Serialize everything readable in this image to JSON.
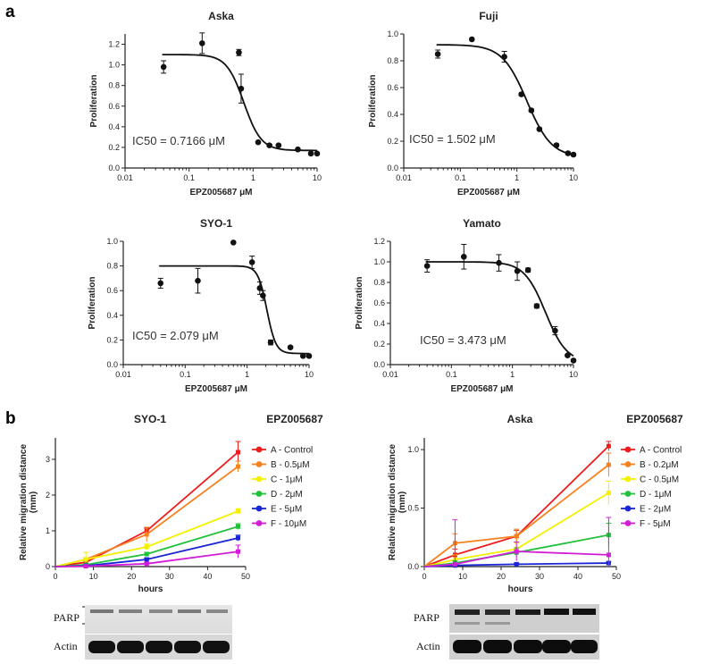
{
  "panel_labels": [
    "a",
    "b"
  ],
  "ic50_plots": {
    "xlabel": "EPZ005687 μM",
    "ylabel": "Proliferation",
    "xticks": [
      "0.01",
      "0.1",
      "1",
      "10"
    ]
  },
  "migration_plots": {
    "xlabel": "hours",
    "ylabel_line1": "Relative migration distance",
    "ylabel_line2": "(mm)",
    "legend_title": "EPZ005687"
  },
  "blots": {
    "left": {
      "parp_label": "PARP",
      "actin_label": "Actin"
    },
    "right": {
      "parp_label": "PARP",
      "actin_label": "Actin"
    }
  },
  "chart_data": [
    {
      "type": "scatter",
      "title": "Aska",
      "xscale": "log",
      "xlabel": "EPZ005687 μM",
      "ylabel": "Proliferation",
      "xlim": [
        0.01,
        10
      ],
      "ylim": [
        0,
        1.3
      ],
      "yticks": [
        "0.0",
        "0.2",
        "0.4",
        "0.6",
        "0.8",
        "1.0",
        "1.2"
      ],
      "x": [
        0.04,
        0.16,
        0.6,
        0.65,
        1.2,
        1.8,
        2.5,
        5,
        8,
        10
      ],
      "y": [
        0.98,
        1.21,
        1.12,
        0.77,
        0.25,
        0.22,
        0.22,
        0.18,
        0.14,
        0.14
      ],
      "err": [
        0.06,
        0.1,
        0.03,
        0.14,
        0.01,
        0.01,
        0.01,
        0.01,
        0.01,
        0.01
      ],
      "fit": {
        "top": 1.1,
        "bottom": 0.17,
        "ic50": 0.7166,
        "hill": 3.2
      },
      "annotation": "IC50 = 0.7166 μM"
    },
    {
      "type": "scatter",
      "title": "Fuji",
      "xscale": "log",
      "xlabel": "EPZ005687 μM",
      "ylabel": "Proliferation",
      "xlim": [
        0.01,
        10
      ],
      "ylim": [
        0,
        1.0
      ],
      "yticks": [
        "0.0",
        "0.2",
        "0.4",
        "0.6",
        "0.8",
        "1.0"
      ],
      "x": [
        0.04,
        0.16,
        0.6,
        1.2,
        1.8,
        2.5,
        5,
        8,
        10
      ],
      "y": [
        0.85,
        0.96,
        0.83,
        0.55,
        0.43,
        0.29,
        0.17,
        0.11,
        0.1
      ],
      "err": [
        0.03,
        0.0,
        0.04,
        0.01,
        0.01,
        0.01,
        0.01,
        0.01,
        0.01
      ],
      "fit": {
        "top": 0.92,
        "bottom": 0.08,
        "ic50": 1.502,
        "hill": 2.0
      },
      "annotation": "IC50 = 1.502 μM"
    },
    {
      "type": "scatter",
      "title": "SYO-1",
      "xscale": "log",
      "xlabel": "EPZ005687 μM",
      "ylabel": "Proliferation",
      "xlim": [
        0.01,
        10
      ],
      "ylim": [
        0,
        1.0
      ],
      "yticks": [
        "0.0",
        "0.2",
        "0.4",
        "0.6",
        "0.8",
        "1.0"
      ],
      "x": [
        0.04,
        0.16,
        0.6,
        1.2,
        1.6,
        1.8,
        2.4,
        5,
        8,
        10
      ],
      "y": [
        0.66,
        0.68,
        0.99,
        0.83,
        0.62,
        0.56,
        0.18,
        0.14,
        0.07,
        0.07
      ],
      "err": [
        0.04,
        0.1,
        0.0,
        0.05,
        0.05,
        0.04,
        0.02,
        0.01,
        0.01,
        0.01
      ],
      "fit": {
        "top": 0.8,
        "bottom": 0.09,
        "ic50": 2.079,
        "hill": 6.0
      },
      "annotation": "IC50 = 2.079 μM"
    },
    {
      "type": "scatter",
      "title": "Yamato",
      "xscale": "log",
      "xlabel": "EPZ005687 μM",
      "ylabel": "Proliferation",
      "xlim": [
        0.01,
        10
      ],
      "ylim": [
        0,
        1.2
      ],
      "yticks": [
        "0.0",
        "0.2",
        "0.4",
        "0.6",
        "0.8",
        "1.0",
        "1.2"
      ],
      "x": [
        0.04,
        0.16,
        0.6,
        1.2,
        1.8,
        2.5,
        5,
        8,
        10
      ],
      "y": [
        0.96,
        1.05,
        0.99,
        0.91,
        0.92,
        0.57,
        0.33,
        0.09,
        0.04
      ],
      "err": [
        0.06,
        0.12,
        0.08,
        0.09,
        0.02,
        0.02,
        0.04,
        0.01,
        0.01
      ],
      "fit": {
        "top": 1.0,
        "bottom": 0.02,
        "ic50": 3.473,
        "hill": 2.5
      },
      "annotation": "IC50 = 3.473 μM"
    },
    {
      "type": "line",
      "title": "SYO-1",
      "xlabel": "hours",
      "ylabel": "Relative migration distance (mm)",
      "legend_title": "EPZ005687",
      "xlim": [
        0,
        50
      ],
      "ylim": [
        0,
        3.6
      ],
      "xticks": [
        "0",
        "10",
        "20",
        "30",
        "40",
        "50"
      ],
      "yticks": [
        "0",
        "1",
        "2",
        "3"
      ],
      "x": [
        0,
        8,
        24,
        48
      ],
      "series": [
        {
          "name": "A - Control",
          "color": "#ee1c1c",
          "values": [
            0,
            0.12,
            1.0,
            3.2
          ],
          "err": [
            0,
            0.05,
            0.08,
            0.3
          ]
        },
        {
          "name": "B - 0.5μM",
          "color": "#f58220",
          "values": [
            0,
            0.2,
            0.9,
            2.8
          ],
          "err": [
            0,
            0.05,
            0.2,
            0.15
          ]
        },
        {
          "name": "C - 1μM",
          "color": "#f5f000",
          "values": [
            0,
            0.2,
            0.55,
            1.55
          ],
          "err": [
            0,
            0.2,
            0.08,
            0.07
          ]
        },
        {
          "name": "D - 2μM",
          "color": "#22c03a",
          "values": [
            0,
            0.05,
            0.35,
            1.12
          ],
          "err": [
            0,
            0.03,
            0.05,
            0.08
          ]
        },
        {
          "name": "E - 5μM",
          "color": "#1a25d6",
          "values": [
            0,
            0.02,
            0.2,
            0.8
          ],
          "err": [
            0,
            0.02,
            0.04,
            0.08
          ]
        },
        {
          "name": "F - 10μM",
          "color": "#d21cd6",
          "values": [
            0,
            0.01,
            0.08,
            0.42
          ],
          "err": [
            0,
            0.01,
            0.03,
            0.18
          ]
        }
      ]
    },
    {
      "type": "line",
      "title": "Aska",
      "xlabel": "hours",
      "ylabel": "Relative migration distance (mm)",
      "legend_title": "EPZ005687",
      "xlim": [
        0,
        50
      ],
      "ylim": [
        0,
        1.1
      ],
      "xticks": [
        "0",
        "10",
        "20",
        "30",
        "40",
        "50"
      ],
      "yticks": [
        "0.0",
        "0.5",
        "1.0"
      ],
      "x": [
        0,
        8,
        24,
        48
      ],
      "series": [
        {
          "name": "A - Control",
          "color": "#ee1c1c",
          "values": [
            0,
            0.1,
            0.26,
            1.03
          ],
          "err": [
            0,
            0.05,
            0.05,
            0.04
          ]
        },
        {
          "name": "B - 0.2μM",
          "color": "#f58220",
          "values": [
            0,
            0.2,
            0.26,
            0.87
          ],
          "err": [
            0,
            0.08,
            0.06,
            0.1
          ]
        },
        {
          "name": "C - 0.5μM",
          "color": "#f5f000",
          "values": [
            0,
            0.06,
            0.15,
            0.63
          ],
          "err": [
            0,
            0.04,
            0.05,
            0.1
          ]
        },
        {
          "name": "D - 1μM",
          "color": "#22c03a",
          "values": [
            0,
            0.03,
            0.12,
            0.27
          ],
          "err": [
            0,
            0.02,
            0.04,
            0.1
          ]
        },
        {
          "name": "E - 2μM",
          "color": "#1a25d6",
          "values": [
            0,
            0.01,
            0.02,
            0.03
          ],
          "err": [
            0,
            0.01,
            0.01,
            0.01
          ]
        },
        {
          "name": "F - 5μM",
          "color": "#d21cd6",
          "values": [
            0,
            0.02,
            0.13,
            0.1
          ],
          "err": [
            0,
            0.38,
            0.08,
            0.32
          ]
        }
      ]
    }
  ]
}
